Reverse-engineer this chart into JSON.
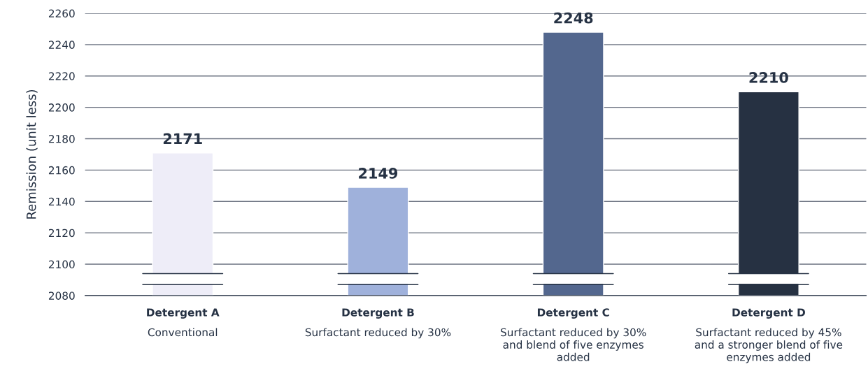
{
  "chart_data": {
    "type": "bar",
    "ylabel": "Remission (unit less)",
    "categories": [
      "Detergent A\nConventional",
      "Detergent B\nSurfactant reduced by 30%",
      "Detergent C\nSurfactant reduced by 30%\nand blend of five enzymes\nadded",
      "Detergent D\nSurfactant reduced by 45%\nand a stronger blend of five\nenzymes added"
    ],
    "values": [
      2171,
      2149,
      2248,
      2210
    ],
    "colors": [
      "#eeedf8",
      "#9fb1db",
      "#53678e",
      "#263142"
    ],
    "ylim": [
      2080,
      2260
    ],
    "yticks": [
      2080,
      2100,
      2120,
      2140,
      2160,
      2180,
      2200,
      2220,
      2240,
      2260
    ],
    "grid": "y",
    "data_labels": true
  }
}
